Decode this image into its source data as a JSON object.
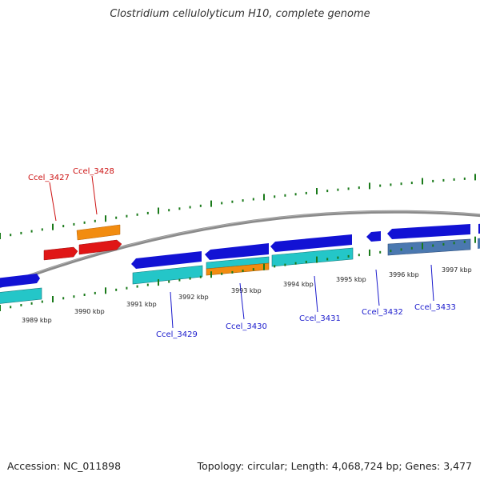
{
  "title": "Clostridium cellulolyticum H10, complete genome",
  "footer": {
    "accession": "Accession: NC_011898",
    "summary": "Topology: circular; Length: 4,068,724 bp; Genes: 3,477"
  },
  "colors": {
    "backbone": "#7a7a7a",
    "tick": "#1a7a1a",
    "forward_gene": "#1212d4",
    "forward_gene_alt": "#4a78b0",
    "reverse_cds": "#24c6c8",
    "rna": "#f28c10",
    "pseudogene": "#e01616",
    "label_blue": "#1a1acc",
    "label_red": "#cc1111"
  },
  "scale": {
    "tick_labels": [
      "3989 kbp",
      "3990 kbp",
      "3991 kbp",
      "3992 kbp",
      "3993 kbp",
      "3994 kbp",
      "3995 kbp",
      "3996 kbp",
      "3997 kbp"
    ]
  },
  "gene_labels": [
    {
      "text": "Ccel_3427",
      "color": "red"
    },
    {
      "text": "Ccel_3428",
      "color": "red"
    },
    {
      "text": "Ccel_3429",
      "color": "blue"
    },
    {
      "text": "Ccel_3430",
      "color": "blue"
    },
    {
      "text": "Ccel_3431",
      "color": "blue"
    },
    {
      "text": "Ccel_3432",
      "color": "blue"
    },
    {
      "text": "Ccel_3433",
      "color": "blue"
    }
  ]
}
